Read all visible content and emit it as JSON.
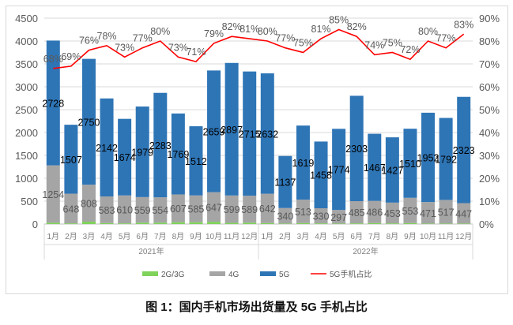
{
  "chart_data": {
    "type": "bar",
    "stacked": true,
    "title": "图 1：国内手机市场出货量及 5G 手机占比",
    "categories": [
      "1月",
      "2月",
      "3月",
      "4月",
      "5月",
      "6月",
      "7月",
      "8月",
      "9月",
      "10月",
      "11月",
      "12月",
      "1月",
      "2月",
      "3月",
      "4月",
      "5月",
      "6月",
      "7月",
      "8月",
      "9月",
      "10月",
      "11月",
      "12月"
    ],
    "groups": [
      {
        "label": "2021年",
        "count": 12
      },
      {
        "label": "2022年",
        "count": 12
      }
    ],
    "series": [
      {
        "name": "2G/3G",
        "color": "#7fd35a",
        "values": [
          28,
          15,
          52,
          20,
          15,
          30,
          30,
          40,
          40,
          50,
          25,
          30,
          20,
          10,
          20,
          15,
          10,
          15,
          20,
          15,
          20,
          10,
          10,
          10
        ]
      },
      {
        "name": "4G",
        "color": "#a5a5a5",
        "values": [
          1254,
          648,
          808,
          583,
          610,
          559,
          554,
          607,
          585,
          647,
          599,
          589,
          642,
          340,
          513,
          330,
          297,
          485,
          486,
          453,
          553,
          471,
          517,
          447
        ]
      },
      {
        "name": "5G",
        "color": "#2e75b6",
        "values": [
          2728,
          1507,
          2750,
          2142,
          1674,
          1979,
          2283,
          1769,
          1512,
          2659,
          2897,
          2715,
          2632,
          1137,
          1619,
          1458,
          1774,
          2303,
          1467,
          1427,
          1510,
          1952,
          1792,
          2323
        ]
      }
    ],
    "line": {
      "name": "5G手机占比",
      "color": "#ff0000",
      "axis": "right",
      "values": [
        68,
        69,
        76,
        78,
        73,
        77,
        80,
        73,
        71,
        79,
        82,
        81,
        80,
        77,
        75,
        81,
        85,
        82,
        74,
        75,
        72,
        80,
        77,
        83
      ]
    },
    "y_left": {
      "min": 0,
      "max": 4500,
      "ticks": [
        0,
        500,
        1000,
        1500,
        2000,
        2500,
        3000,
        3500,
        4000,
        4500
      ]
    },
    "y_right": {
      "min": 0,
      "max": 90,
      "ticks": [
        "0%",
        "10%",
        "20%",
        "30%",
        "40%",
        "50%",
        "60%",
        "70%",
        "80%",
        "90%"
      ]
    },
    "grid": true,
    "legend_position": "bottom"
  }
}
